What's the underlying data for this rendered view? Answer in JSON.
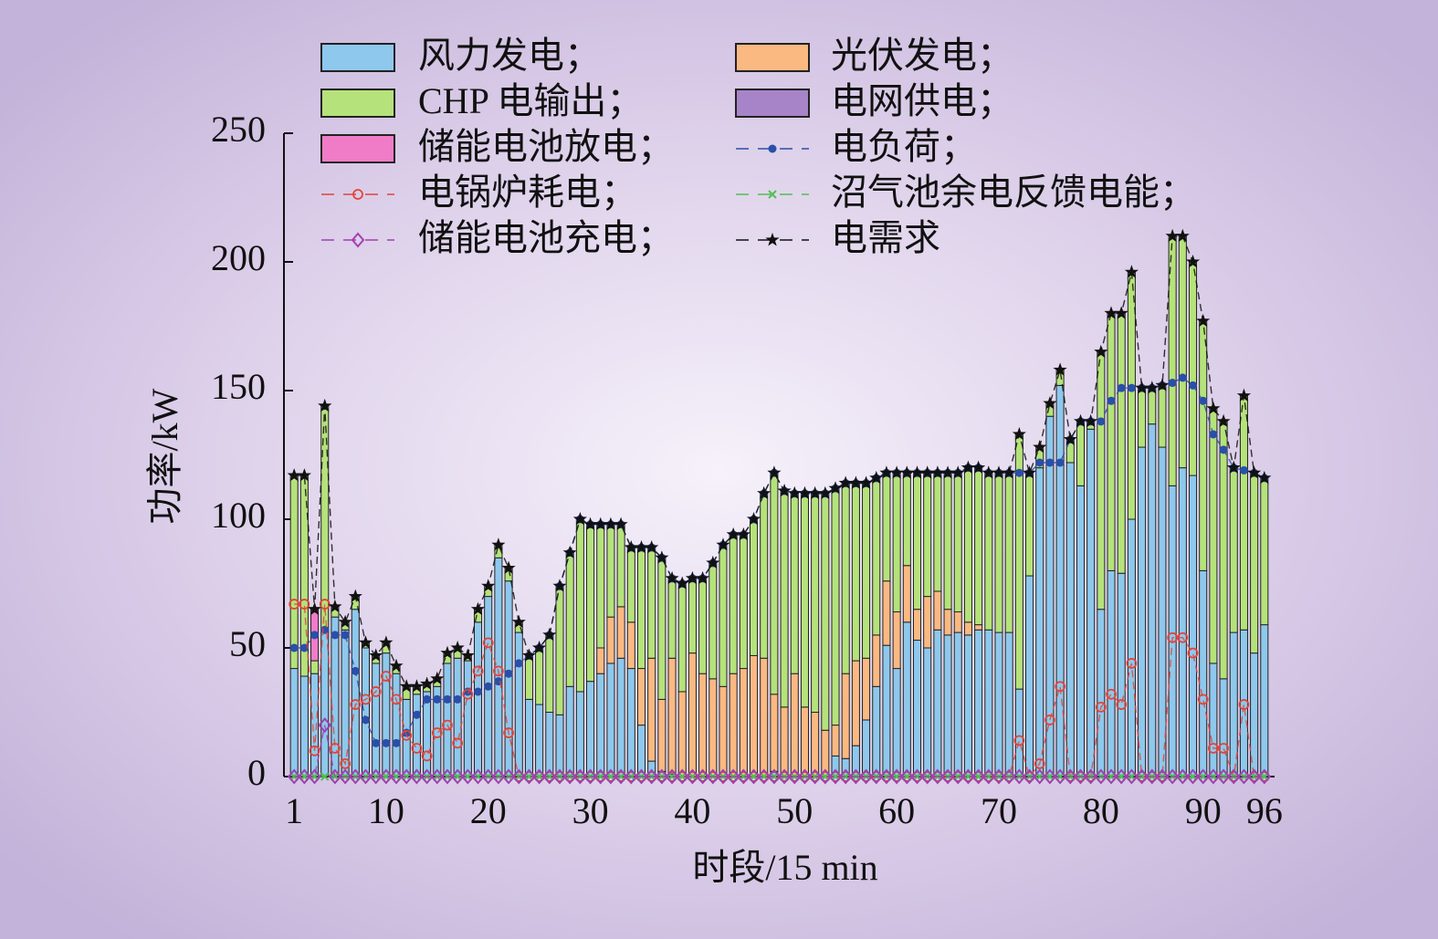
{
  "chart_data": {
    "type": "bar",
    "xlabel": "时段/15 min",
    "ylabel": "功率/kW",
    "x": [
      1,
      2,
      3,
      4,
      5,
      6,
      7,
      8,
      9,
      10,
      11,
      12,
      13,
      14,
      15,
      16,
      17,
      18,
      19,
      20,
      21,
      22,
      23,
      24,
      25,
      26,
      27,
      28,
      29,
      30,
      31,
      32,
      33,
      34,
      35,
      36,
      37,
      38,
      39,
      40,
      41,
      42,
      43,
      44,
      45,
      46,
      47,
      48,
      49,
      50,
      51,
      52,
      53,
      54,
      55,
      56,
      57,
      58,
      59,
      60,
      61,
      62,
      63,
      64,
      65,
      66,
      67,
      68,
      69,
      70,
      71,
      72,
      73,
      74,
      75,
      76,
      77,
      78,
      79,
      80,
      81,
      82,
      83,
      84,
      85,
      86,
      87,
      88,
      89,
      90,
      91,
      92,
      93,
      94,
      95,
      96
    ],
    "xlim": [
      0,
      97
    ],
    "xticks": [
      1,
      10,
      20,
      30,
      40,
      50,
      60,
      70,
      80,
      90,
      96
    ],
    "ylim": [
      0,
      250
    ],
    "yticks": [
      0,
      50,
      100,
      150,
      200,
      250
    ],
    "series": [
      {
        "name": "风力发电；",
        "type": "bar",
        "color": "#8ec8ec",
        "values": [
          42,
          39,
          40,
          57,
          62,
          57,
          65,
          50,
          44,
          48,
          40,
          30,
          32,
          33,
          35,
          44,
          46,
          45,
          60,
          70,
          85,
          76,
          56,
          30,
          28,
          25,
          24,
          35,
          33,
          37,
          40,
          44,
          46,
          42,
          20,
          6,
          2,
          1,
          0,
          0,
          0,
          0,
          0,
          0,
          0,
          0,
          0,
          2,
          0,
          0,
          0,
          0,
          0,
          8,
          7,
          12,
          22,
          35,
          51,
          42,
          60,
          53,
          50,
          57,
          55,
          56,
          55,
          57,
          57,
          56,
          56,
          34,
          78,
          120,
          140,
          152,
          122,
          113,
          135,
          65,
          80,
          79,
          100,
          128,
          137,
          128,
          113,
          120,
          117,
          80,
          44,
          38,
          56,
          57,
          48,
          59
        ]
      },
      {
        "name": "光伏发电；",
        "type": "bar",
        "color": "#fbb982",
        "values": [
          0,
          0,
          0,
          0,
          0,
          0,
          0,
          0,
          0,
          0,
          0,
          0,
          0,
          0,
          0,
          0,
          0,
          0,
          0,
          0,
          0,
          0,
          0,
          0,
          0,
          0,
          0,
          0,
          0,
          0,
          10,
          18,
          20,
          18,
          22,
          40,
          28,
          45,
          33,
          48,
          40,
          38,
          35,
          40,
          42,
          47,
          46,
          30,
          27,
          40,
          27,
          25,
          18,
          12,
          33,
          33,
          24,
          20,
          25,
          22,
          22,
          12,
          20,
          15,
          10,
          8,
          5,
          2,
          0,
          0,
          0,
          0,
          0,
          0,
          0,
          0,
          0,
          0,
          0,
          0,
          0,
          0,
          0,
          0,
          0,
          0,
          0,
          0,
          0,
          0,
          0,
          0,
          0,
          0,
          0,
          0
        ]
      },
      {
        "name": "CHP 电输出；",
        "type": "bar",
        "color": "#b5e27a",
        "values": [
          75,
          78,
          5,
          87,
          4,
          3,
          5,
          2,
          3,
          4,
          3,
          5,
          3,
          3,
          3,
          4,
          4,
          2,
          5,
          4,
          5,
          5,
          4,
          17,
          22,
          30,
          50,
          52,
          67,
          61,
          48,
          36,
          32,
          29,
          47,
          43,
          55,
          31,
          42,
          29,
          37,
          45,
          55,
          54,
          52,
          53,
          64,
          86,
          84,
          70,
          83,
          85,
          92,
          92,
          74,
          69,
          68,
          61,
          42,
          54,
          36,
          53,
          48,
          46,
          53,
          54,
          60,
          61,
          61,
          62,
          62,
          99,
          40,
          8,
          5,
          6,
          9,
          25,
          3,
          100,
          100,
          101,
          96,
          23,
          14,
          24,
          97,
          90,
          83,
          97,
          99,
          100,
          64,
          91,
          70,
          57
        ]
      },
      {
        "name": "电网供电；",
        "type": "bar",
        "color": "#a784c7",
        "values": [
          0,
          0,
          0,
          0,
          0,
          0,
          0,
          0,
          0,
          0,
          0,
          0,
          0,
          0,
          0,
          0,
          0,
          0,
          0,
          0,
          0,
          0,
          0,
          0,
          0,
          0,
          0,
          0,
          0,
          0,
          0,
          0,
          0,
          0,
          0,
          0,
          0,
          0,
          0,
          0,
          0,
          0,
          0,
          0,
          0,
          0,
          0,
          0,
          0,
          0,
          0,
          0,
          0,
          0,
          0,
          0,
          0,
          0,
          0,
          0,
          0,
          0,
          0,
          0,
          0,
          0,
          0,
          0,
          0,
          0,
          0,
          0,
          0,
          0,
          0,
          0,
          0,
          0,
          0,
          0,
          0,
          0,
          0,
          0,
          0,
          0,
          0,
          0,
          0,
          0,
          0,
          0,
          0,
          0,
          0,
          0
        ]
      },
      {
        "name": "储能电池放电；",
        "type": "bar",
        "color": "#f07cc8",
        "values": [
          0,
          0,
          20,
          0,
          0,
          0,
          0,
          0,
          0,
          0,
          0,
          0,
          0,
          0,
          0,
          0,
          0,
          0,
          0,
          0,
          0,
          0,
          0,
          0,
          0,
          0,
          0,
          0,
          0,
          0,
          0,
          0,
          0,
          0,
          0,
          0,
          0,
          0,
          0,
          0,
          0,
          0,
          0,
          0,
          0,
          0,
          0,
          0,
          0,
          0,
          0,
          0,
          0,
          0,
          0,
          0,
          0,
          0,
          0,
          0,
          0,
          0,
          0,
          0,
          0,
          0,
          0,
          0,
          0,
          0,
          0,
          0,
          0,
          0,
          0,
          0,
          0,
          0,
          0,
          0,
          0,
          0,
          0,
          0,
          0,
          0,
          0,
          0,
          0,
          0,
          0,
          0,
          0,
          0,
          0,
          0
        ]
      },
      {
        "name": "电负荷；",
        "type": "line",
        "marker": "dot",
        "color": "#2a4fa8",
        "values": [
          50,
          50,
          55,
          57,
          55,
          55,
          41,
          22,
          13,
          13,
          13,
          17,
          24,
          30,
          30,
          30,
          30,
          33,
          33,
          35,
          37,
          40,
          44,
          47,
          50,
          55,
          74,
          87,
          100,
          98,
          98,
          98,
          98,
          89,
          89,
          89,
          85,
          77,
          75,
          77,
          77,
          83,
          90,
          94,
          94,
          100,
          110,
          118,
          111,
          110,
          110,
          110,
          110,
          112,
          114,
          114,
          114,
          116,
          118,
          118,
          118,
          118,
          118,
          118,
          118,
          118,
          120,
          120,
          118,
          118,
          118,
          118,
          118,
          122,
          122,
          122,
          131,
          138,
          138,
          138,
          146,
          151,
          151,
          151,
          151,
          152,
          153,
          155,
          152,
          146,
          133,
          127,
          120,
          119,
          118,
          116
        ]
      },
      {
        "name": "电锅炉耗电；",
        "type": "line",
        "marker": "circle",
        "color": "#e0453a",
        "values": [
          67,
          67,
          10,
          67,
          11,
          5,
          28,
          30,
          33,
          39,
          30,
          16,
          11,
          8,
          17,
          20,
          13,
          32,
          41,
          52,
          41,
          17,
          0,
          0,
          0,
          0,
          0,
          0,
          0,
          0,
          0,
          0,
          0,
          0,
          0,
          0,
          0,
          0,
          0,
          0,
          0,
          0,
          0,
          0,
          0,
          0,
          0,
          0,
          0,
          0,
          0,
          0,
          0,
          0,
          0,
          0,
          0,
          0,
          0,
          0,
          0,
          0,
          0,
          0,
          0,
          0,
          0,
          0,
          0,
          0,
          0,
          14,
          0,
          5,
          22,
          35,
          0,
          0,
          0,
          27,
          32,
          28,
          44,
          0,
          0,
          0,
          54,
          54,
          48,
          30,
          11,
          11,
          0,
          28,
          0,
          0
        ]
      },
      {
        "name": "沼气池余电反馈电能；",
        "type": "line",
        "marker": "cross",
        "color": "#4fc04f",
        "values": [
          0,
          0,
          0,
          0,
          0,
          0,
          0,
          0,
          0,
          0,
          0,
          0,
          0,
          0,
          0,
          0,
          0,
          0,
          0,
          0,
          0,
          0,
          0,
          0,
          0,
          0,
          0,
          0,
          0,
          0,
          0,
          0,
          0,
          0,
          0,
          0,
          0,
          0,
          0,
          0,
          0,
          0,
          0,
          0,
          0,
          0,
          0,
          0,
          0,
          0,
          0,
          0,
          0,
          0,
          0,
          0,
          0,
          0,
          0,
          0,
          0,
          0,
          0,
          0,
          0,
          0,
          0,
          0,
          0,
          0,
          0,
          0,
          0,
          0,
          0,
          0,
          0,
          0,
          0,
          0,
          0,
          0,
          0,
          0,
          0,
          0,
          0,
          0,
          0,
          0,
          0,
          0,
          0,
          0,
          0,
          0
        ]
      },
      {
        "name": "储能电池充电；",
        "type": "line",
        "marker": "diamond",
        "color": "#a040b0",
        "values": [
          0,
          0,
          0,
          20,
          0,
          0,
          0,
          0,
          0,
          0,
          0,
          0,
          0,
          0,
          0,
          0,
          0,
          0,
          0,
          0,
          0,
          0,
          0,
          0,
          0,
          0,
          0,
          0,
          0,
          0,
          0,
          0,
          0,
          0,
          0,
          0,
          0,
          0,
          0,
          0,
          0,
          0,
          0,
          0,
          0,
          0,
          0,
          0,
          0,
          0,
          0,
          0,
          0,
          0,
          0,
          0,
          0,
          0,
          0,
          0,
          0,
          0,
          0,
          0,
          0,
          0,
          0,
          0,
          0,
          0,
          0,
          0,
          0,
          0,
          0,
          0,
          0,
          0,
          0,
          0,
          0,
          0,
          0,
          0,
          0,
          0,
          0,
          0,
          0,
          0,
          0,
          0,
          0,
          0,
          0,
          0
        ]
      },
      {
        "name": "电需求",
        "type": "line",
        "marker": "star",
        "color": "#111111",
        "values": [
          117,
          117,
          65,
          144,
          66,
          60,
          70,
          52,
          47,
          52,
          43,
          35,
          35,
          36,
          38,
          48,
          50,
          47,
          65,
          74,
          90,
          81,
          60,
          47,
          50,
          55,
          74,
          87,
          100,
          98,
          98,
          98,
          98,
          89,
          89,
          89,
          85,
          77,
          75,
          77,
          77,
          83,
          90,
          94,
          94,
          100,
          110,
          118,
          111,
          110,
          110,
          110,
          110,
          112,
          114,
          114,
          114,
          116,
          118,
          118,
          118,
          118,
          118,
          118,
          118,
          118,
          120,
          120,
          118,
          118,
          118,
          133,
          118,
          128,
          145,
          158,
          131,
          138,
          138,
          165,
          180,
          180,
          196,
          151,
          151,
          152,
          210,
          210,
          200,
          177,
          143,
          138,
          120,
          148,
          118,
          116
        ]
      }
    ]
  }
}
